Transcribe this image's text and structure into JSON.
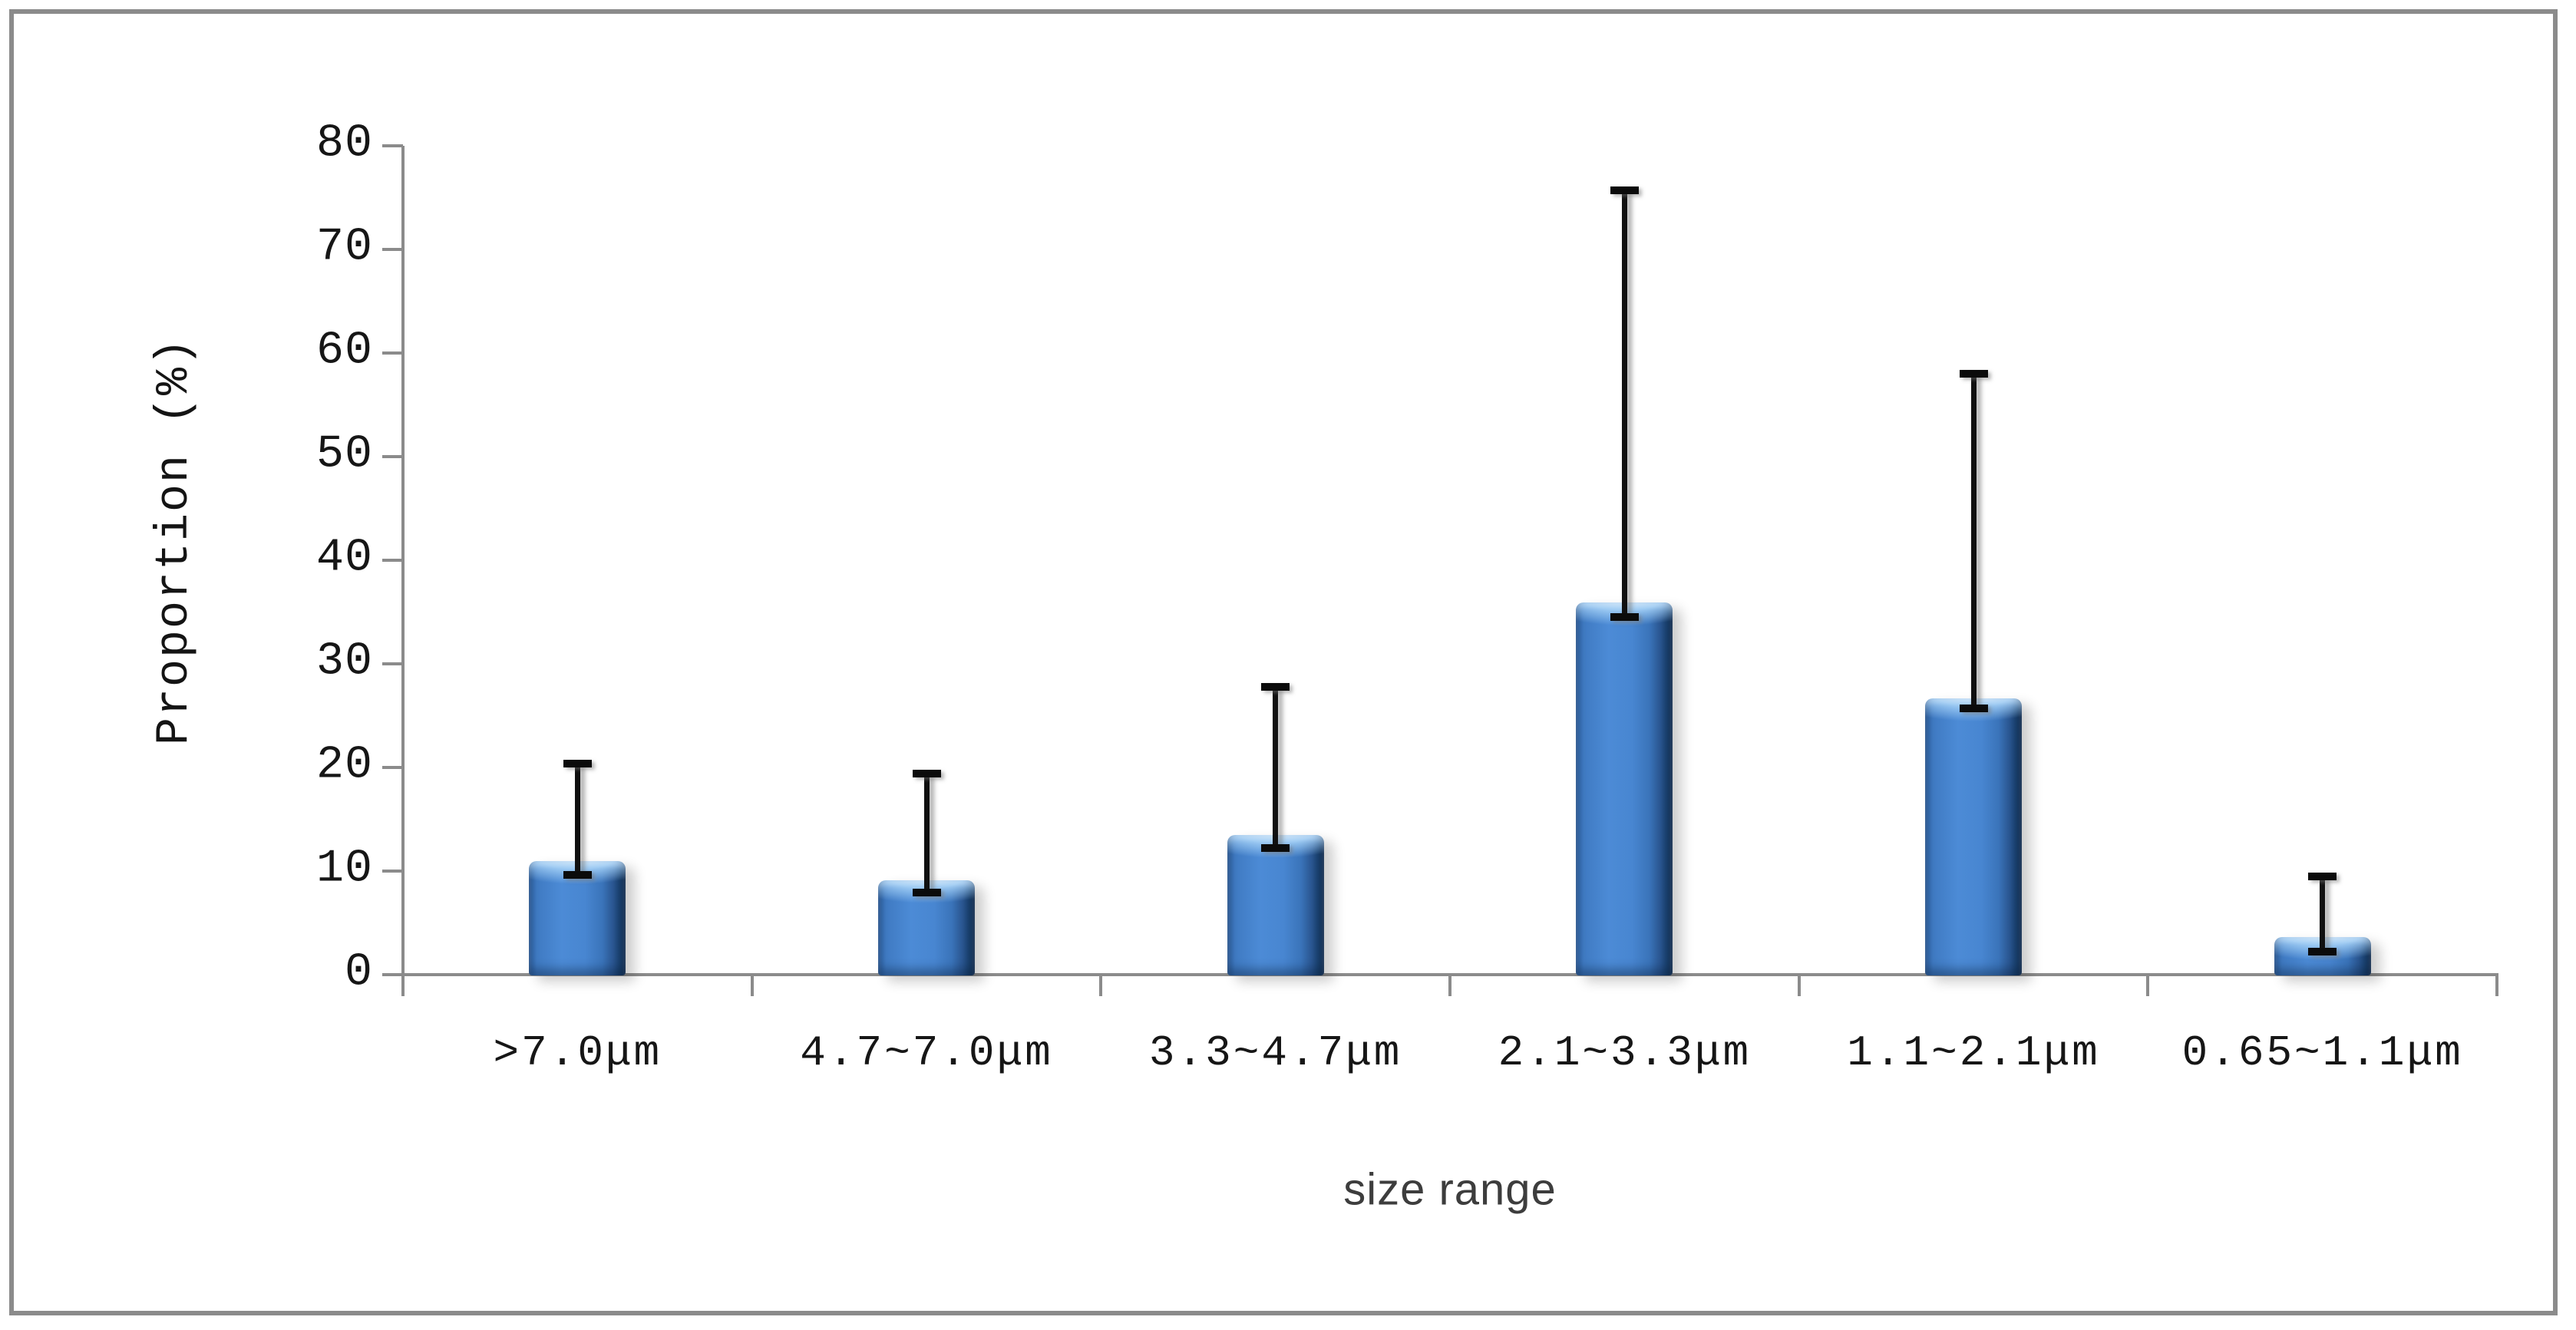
{
  "chart_data": {
    "type": "bar",
    "title": "",
    "xlabel": "size range",
    "ylabel": "Proportion (%)",
    "categories": [
      ">7.0μm",
      "4.7~7.0μm",
      "3.3~4.7μm",
      "2.1~3.3μm",
      "1.1~2.1μm",
      "0.65~1.1μm"
    ],
    "values": [
      11.0,
      9.1,
      13.5,
      35.9,
      26.7,
      3.6
    ],
    "error_bars": {
      "low": [
        9.6,
        7.9,
        12.2,
        34.5,
        25.7,
        2.2
      ],
      "high": [
        20.4,
        19.4,
        27.8,
        75.7,
        58.0,
        9.5
      ]
    },
    "ylim": [
      0,
      80
    ],
    "yticks": [
      0,
      10,
      20,
      30,
      40,
      50,
      60,
      70,
      80
    ],
    "grid": false,
    "legend": "none",
    "bar_color": "#4886d1",
    "bar_edge_dark": "#142f52",
    "bar_highlight": "#cfe7fb",
    "axis_color": "#8b8b8b",
    "error_bar_color": "#0b0b0b"
  }
}
